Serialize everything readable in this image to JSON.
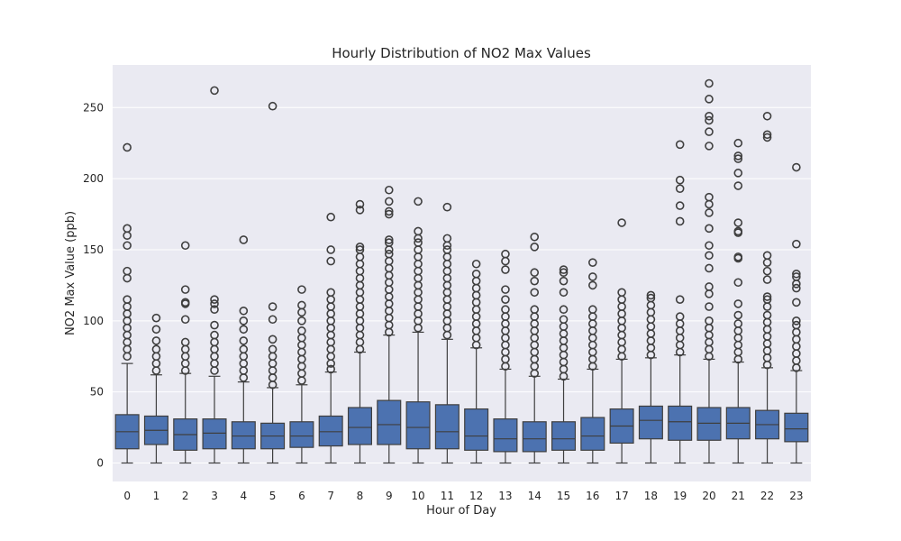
{
  "chart_data": {
    "type": "box",
    "title": "Hourly Distribution of NO2 Max Values",
    "xlabel": "Hour of Day",
    "ylabel": "NO2 Max Value (ppb)",
    "categories": [
      "0",
      "1",
      "2",
      "3",
      "4",
      "5",
      "6",
      "7",
      "8",
      "9",
      "10",
      "11",
      "12",
      "13",
      "14",
      "15",
      "16",
      "17",
      "18",
      "19",
      "20",
      "21",
      "22",
      "23"
    ],
    "yticks": [
      0,
      50,
      100,
      150,
      200,
      250
    ],
    "ylim": [
      -13,
      280
    ],
    "grid": true,
    "colors": {
      "background": "#EAEAF2",
      "box": "#4C72B0",
      "line": "#3F3F3F",
      "grid": "#FFFFFF"
    },
    "boxes": [
      {
        "q1": 10,
        "median": 22,
        "q3": 34,
        "whislo": 0,
        "whishi": 70,
        "outliers": [
          75,
          80,
          85,
          90,
          95,
          100,
          105,
          110,
          115,
          130,
          135,
          153,
          160,
          165,
          222
        ]
      },
      {
        "q1": 13,
        "median": 23,
        "q3": 33,
        "whislo": 0,
        "whishi": 62,
        "outliers": [
          65,
          70,
          75,
          80,
          86,
          94,
          102
        ]
      },
      {
        "q1": 9,
        "median": 20,
        "q3": 31,
        "whislo": 0,
        "whishi": 63,
        "outliers": [
          65,
          70,
          75,
          80,
          85,
          101,
          112,
          113,
          122,
          153
        ]
      },
      {
        "q1": 10,
        "median": 21,
        "q3": 31,
        "whislo": 0,
        "whishi": 61,
        "outliers": [
          65,
          70,
          75,
          80,
          85,
          90,
          97,
          108,
          112,
          115,
          262
        ]
      },
      {
        "q1": 10,
        "median": 19,
        "q3": 29,
        "whislo": 0,
        "whishi": 57,
        "outliers": [
          60,
          65,
          70,
          75,
          80,
          86,
          94,
          100,
          107,
          157
        ]
      },
      {
        "q1": 10,
        "median": 19,
        "q3": 28,
        "whislo": 0,
        "whishi": 53,
        "outliers": [
          55,
          60,
          65,
          70,
          75,
          80,
          87,
          101,
          110,
          251
        ]
      },
      {
        "q1": 11,
        "median": 19,
        "q3": 29,
        "whislo": 0,
        "whishi": 55,
        "outliers": [
          58,
          63,
          68,
          73,
          78,
          83,
          88,
          93,
          100,
          106,
          111,
          122
        ]
      },
      {
        "q1": 12,
        "median": 22,
        "q3": 33,
        "whislo": 0,
        "whishi": 64,
        "outliers": [
          66,
          70,
          75,
          80,
          85,
          90,
          95,
          100,
          105,
          110,
          115,
          120,
          142,
          150,
          173
        ]
      },
      {
        "q1": 13,
        "median": 25,
        "q3": 39,
        "whislo": 0,
        "whishi": 78,
        "outliers": [
          80,
          85,
          90,
          95,
          100,
          105,
          110,
          115,
          120,
          125,
          130,
          135,
          140,
          145,
          150,
          152,
          178,
          182
        ]
      },
      {
        "q1": 13,
        "median": 27,
        "q3": 44,
        "whislo": 0,
        "whishi": 90,
        "outliers": [
          92,
          97,
          102,
          107,
          112,
          117,
          122,
          127,
          132,
          137,
          142,
          147,
          150,
          155,
          157,
          175,
          177,
          184,
          192
        ]
      },
      {
        "q1": 10,
        "median": 25,
        "q3": 43,
        "whislo": 0,
        "whishi": 92,
        "outliers": [
          95,
          100,
          105,
          110,
          115,
          120,
          125,
          130,
          135,
          140,
          145,
          150,
          155,
          158,
          163,
          184
        ]
      },
      {
        "q1": 10,
        "median": 22,
        "q3": 41,
        "whislo": 0,
        "whishi": 87,
        "outliers": [
          90,
          95,
          100,
          105,
          110,
          115,
          120,
          125,
          130,
          135,
          140,
          145,
          150,
          153,
          158,
          180
        ]
      },
      {
        "q1": 9,
        "median": 19,
        "q3": 38,
        "whislo": 0,
        "whishi": 81,
        "outliers": [
          83,
          88,
          93,
          98,
          103,
          108,
          113,
          118,
          123,
          128,
          133,
          140
        ]
      },
      {
        "q1": 8,
        "median": 17,
        "q3": 31,
        "whislo": 0,
        "whishi": 66,
        "outliers": [
          68,
          73,
          78,
          83,
          88,
          93,
          98,
          103,
          108,
          115,
          122,
          136,
          142,
          147
        ]
      },
      {
        "q1": 8,
        "median": 17,
        "q3": 29,
        "whislo": 0,
        "whishi": 61,
        "outliers": [
          63,
          68,
          73,
          78,
          83,
          88,
          93,
          98,
          103,
          108,
          120,
          128,
          134,
          152,
          159
        ]
      },
      {
        "q1": 9,
        "median": 17,
        "q3": 29,
        "whislo": 0,
        "whishi": 59,
        "outliers": [
          61,
          66,
          71,
          76,
          81,
          86,
          91,
          96,
          101,
          108,
          120,
          128,
          134,
          136
        ]
      },
      {
        "q1": 9,
        "median": 19,
        "q3": 32,
        "whislo": 0,
        "whishi": 66,
        "outliers": [
          68,
          73,
          78,
          83,
          88,
          93,
          98,
          103,
          108,
          125,
          131,
          141
        ]
      },
      {
        "q1": 14,
        "median": 26,
        "q3": 38,
        "whislo": 0,
        "whishi": 73,
        "outliers": [
          75,
          80,
          85,
          90,
          95,
          100,
          105,
          110,
          115,
          120,
          169
        ]
      },
      {
        "q1": 17,
        "median": 30,
        "q3": 40,
        "whislo": 0,
        "whishi": 74,
        "outliers": [
          76,
          81,
          86,
          91,
          96,
          101,
          106,
          111,
          116,
          118
        ]
      },
      {
        "q1": 16,
        "median": 29,
        "q3": 40,
        "whislo": 0,
        "whishi": 76,
        "outliers": [
          78,
          83,
          88,
          93,
          98,
          103,
          115,
          170,
          181,
          193,
          199,
          224
        ]
      },
      {
        "q1": 16,
        "median": 28,
        "q3": 39,
        "whislo": 0,
        "whishi": 73,
        "outliers": [
          75,
          80,
          85,
          90,
          95,
          100,
          110,
          119,
          124,
          137,
          146,
          153,
          165,
          176,
          182,
          187,
          223,
          233,
          241,
          244,
          256,
          267
        ]
      },
      {
        "q1": 17,
        "median": 28,
        "q3": 39,
        "whislo": 0,
        "whishi": 71,
        "outliers": [
          73,
          78,
          83,
          88,
          93,
          98,
          104,
          112,
          127,
          144,
          145,
          162,
          163,
          169,
          195,
          204,
          214,
          216,
          225
        ]
      },
      {
        "q1": 17,
        "median": 27,
        "q3": 37,
        "whislo": 0,
        "whishi": 67,
        "outliers": [
          69,
          74,
          79,
          84,
          89,
          94,
          99,
          104,
          110,
          115,
          117,
          129,
          135,
          141,
          146,
          229,
          231,
          244
        ]
      },
      {
        "q1": 15,
        "median": 24,
        "q3": 35,
        "whislo": 0,
        "whishi": 65,
        "outliers": [
          67,
          72,
          77,
          82,
          87,
          92,
          97,
          100,
          113,
          123,
          126,
          131,
          133,
          154,
          208
        ]
      }
    ]
  }
}
